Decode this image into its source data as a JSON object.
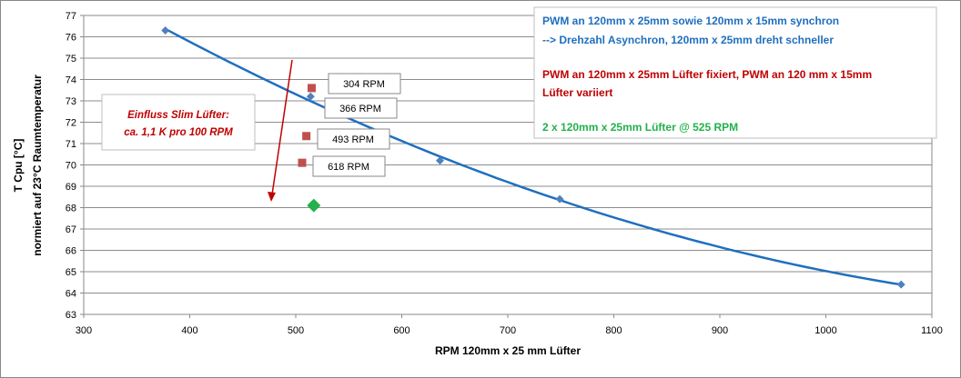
{
  "chart_data": {
    "type": "scatter",
    "xlim": [
      300,
      1100
    ],
    "ylim": [
      63,
      77
    ],
    "x_ticks": [
      "300",
      "400",
      "500",
      "600",
      "700",
      "800",
      "900",
      "1000",
      "1100"
    ],
    "y_ticks": [
      "63",
      "64",
      "65",
      "66",
      "67",
      "68",
      "69",
      "70",
      "71",
      "72",
      "73",
      "74",
      "75",
      "76",
      "77"
    ],
    "xlabel": "RPM 120mm x 25 mm Lüfter",
    "ylabel": [
      "T Cpu [°C]",
      "normiert auf 23°C Raumtemperatur"
    ],
    "grid": "horizontal",
    "series": [
      {
        "name": "PWM an 120mm x 25mm sowie 120mm x 15mm synchron",
        "marker": "diamond",
        "color": "#4F81BD",
        "trend_color": "#1F6FBF",
        "points": [
          {
            "x": 377,
            "y": 76.3
          },
          {
            "x": 514,
            "y": 73.2
          },
          {
            "x": 636,
            "y": 70.2
          },
          {
            "x": 749,
            "y": 68.4
          },
          {
            "x": 1071,
            "y": 64.4
          }
        ]
      },
      {
        "name": "PWM an 120mm x 25mm Lüfter fixiert, PWM an 120 mm x 15mm Lüfter variiert",
        "marker": "square",
        "color": "#C0504D",
        "points": [
          {
            "x": 515,
            "y": 73.6,
            "label": "304 RPM"
          },
          {
            "x": 510,
            "y": 71.35,
            "label": "493 RPM"
          },
          {
            "x": 506,
            "y": 70.1,
            "label": "618 RPM"
          }
        ]
      },
      {
        "name": "2 x 120mm x 25mm Lüfter @ 525 RPM",
        "marker": "diamond",
        "color": "#22B14C",
        "points": [
          {
            "x": 517,
            "y": 68.1
          }
        ]
      }
    ],
    "callouts": [
      {
        "label": "304 RPM"
      },
      {
        "label": "366 RPM"
      },
      {
        "label": "493 RPM"
      },
      {
        "label": "618 RPM"
      }
    ],
    "annotation_box": {
      "lines": [
        {
          "text": "PWM an 120mm x 25mm sowie 120mm x 15mm synchron",
          "color": "#1F6FBF"
        },
        {
          "text": "--> Drehzahl Asynchron, 120mm x 25mm dreht schneller",
          "color": "#1F6FBF"
        },
        {
          "text": "PWM an 120mm x 25mm Lüfter fixiert, PWM an 120 mm x 15mm",
          "color": "#C00000"
        },
        {
          "text": "Lüfter variiert",
          "color": "#C00000"
        },
        {
          "text": "2 x 120mm x 25mm Lüfter @ 525 RPM",
          "color": "#22B14C"
        }
      ]
    },
    "slim_note": {
      "lines": [
        "Einfluss Slim Lüfter:",
        "ca. 1,1 K pro 100  RPM"
      ],
      "color": "#C00000",
      "arrow_color": "#C00000"
    }
  }
}
